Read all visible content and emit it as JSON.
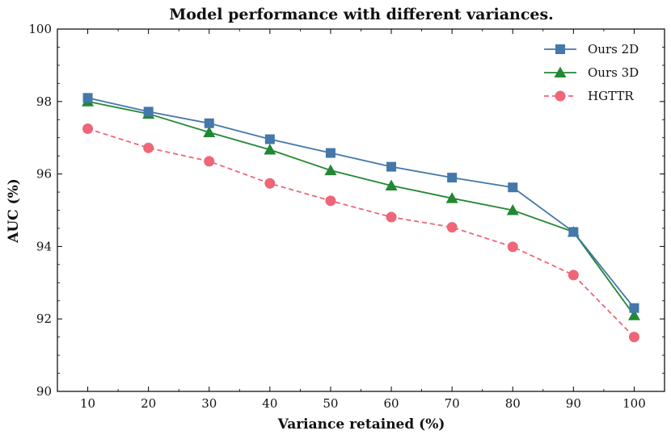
{
  "chart_data": {
    "type": "line",
    "title": "Model performance with different variances.",
    "xlabel": "Variance retained (%)",
    "ylabel": "AUC (%)",
    "x": [
      10,
      20,
      30,
      40,
      50,
      60,
      70,
      80,
      90,
      100
    ],
    "xlim": [
      5,
      105
    ],
    "ylim": [
      90,
      100
    ],
    "yticks": [
      90,
      92,
      94,
      96,
      98,
      100
    ],
    "legend_position": "top-right",
    "series": [
      {
        "name": "Ours 2D",
        "color": "#4477aa",
        "marker": "square",
        "linestyle": "solid",
        "values": [
          98.1,
          97.72,
          97.4,
          96.96,
          96.58,
          96.2,
          95.9,
          95.63,
          94.4,
          92.3
        ]
      },
      {
        "name": "Ours 3D",
        "color": "#228833",
        "marker": "triangle",
        "linestyle": "solid",
        "values": [
          98.0,
          97.66,
          97.15,
          96.67,
          96.1,
          95.68,
          95.33,
          95.0,
          94.4,
          92.1
        ]
      },
      {
        "name": "HGTTR",
        "color": "#ee6677",
        "marker": "circle",
        "linestyle": "dashed",
        "values": [
          97.25,
          96.72,
          96.35,
          95.74,
          95.26,
          94.81,
          94.53,
          93.99,
          93.21,
          91.5
        ]
      }
    ]
  }
}
